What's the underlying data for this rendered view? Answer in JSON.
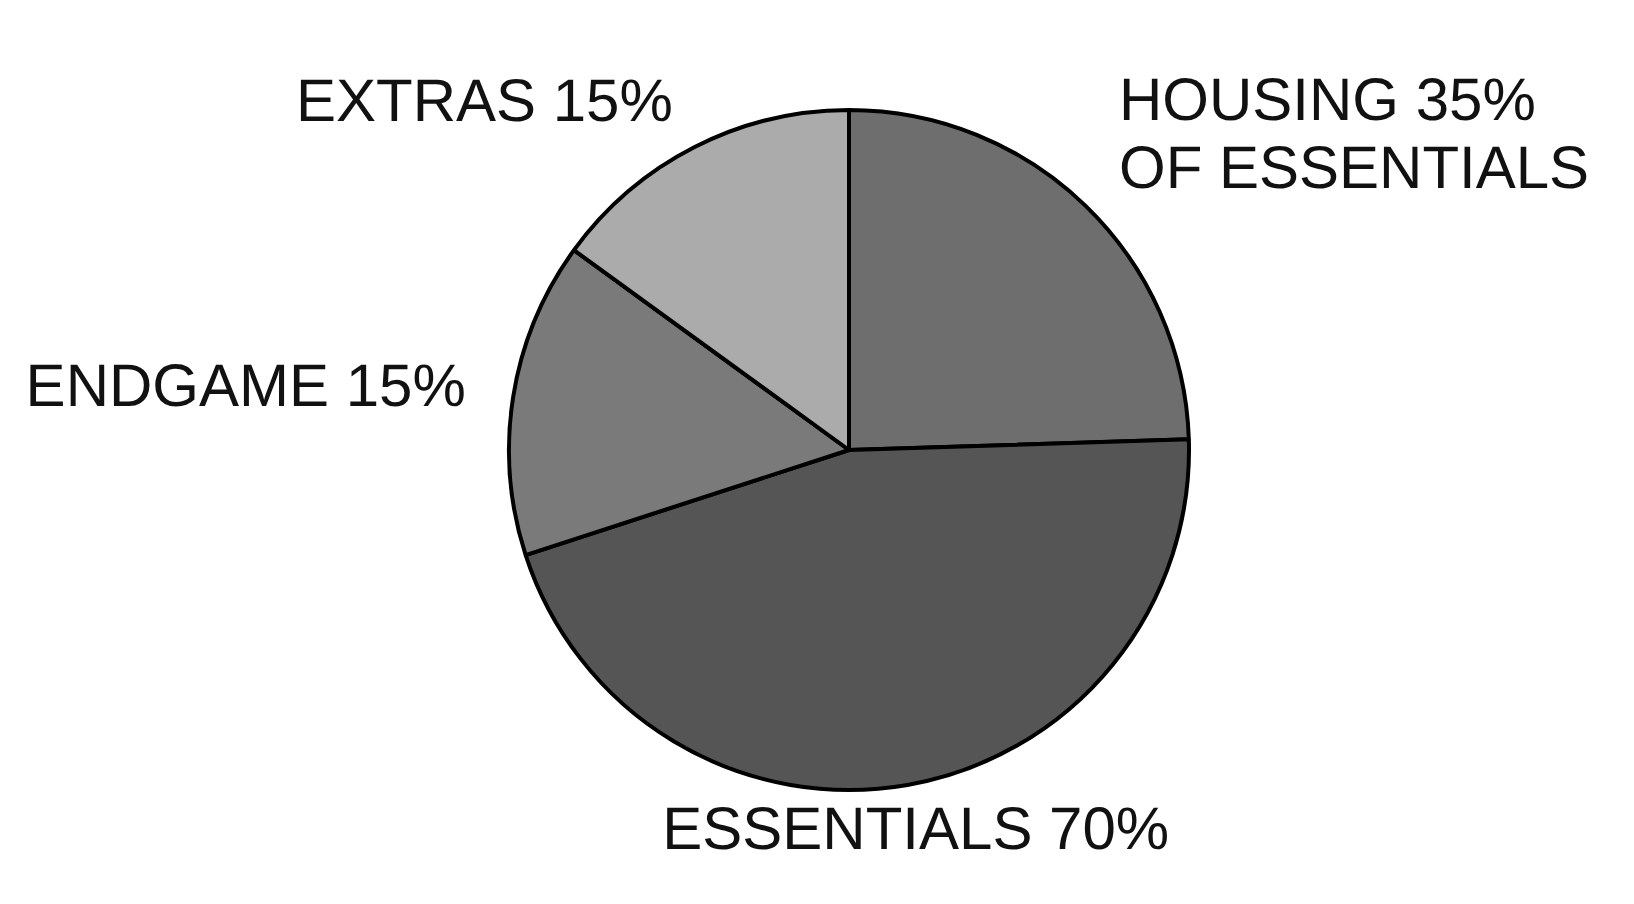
{
  "chart_data": {
    "type": "pie",
    "categories": [
      "HOUSING 35% OF ESSENTIALS",
      "ESSENTIALS 70%",
      "ENDGAME 15%",
      "EXTRAS 15%"
    ],
    "values": [
      24.5,
      45.5,
      15,
      15
    ],
    "colors": [
      "#6e6e6e",
      "#555555",
      "#7a7a7a",
      "#ababab"
    ],
    "legend": false
  }
}
